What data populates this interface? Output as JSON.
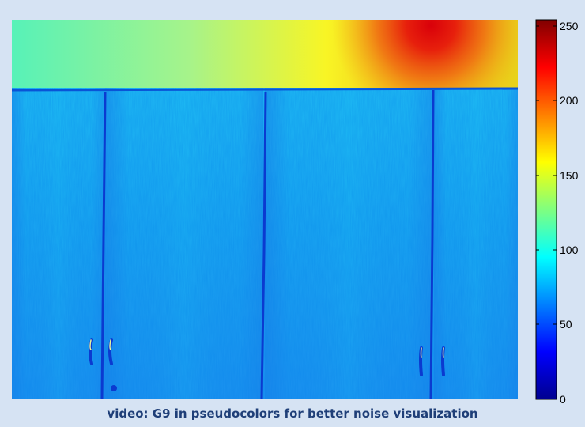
{
  "caption": "video: G9 in pseudocolors for better noise visualization",
  "colorbar": {
    "ticks": [
      "250",
      "200",
      "150",
      "100",
      "50",
      "0"
    ],
    "colormap": [
      "#00008f",
      "#0000ff",
      "#00ffff",
      "#ffff00",
      "#ff0000",
      "#800000"
    ]
  },
  "colors": {
    "background": "#d6e3f3",
    "caption_text": "#1f3f78",
    "cabinet_base": "#1e9bf0",
    "wall_gradient": [
      "#57f2b8",
      "#a6f38a",
      "#f8f525",
      "#f1c419",
      "#e61b0d"
    ]
  }
}
